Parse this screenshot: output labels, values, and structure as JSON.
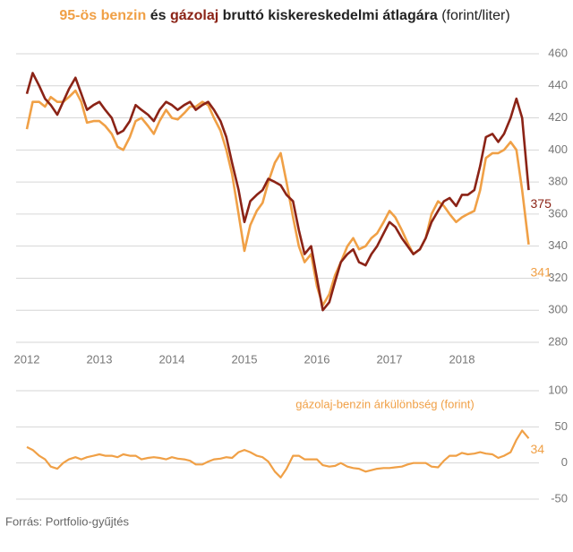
{
  "chart_data": [
    {
      "type": "line",
      "title": [
        "és",
        "bruttó kiskereskedelmi átlagára",
        "(forint/liter)"
      ],
      "xlim": [
        2012,
        2019
      ],
      "xticks": [
        2012,
        2013,
        2014,
        2015,
        2016,
        2017,
        2018
      ],
      "ylim": [
        280,
        460
      ],
      "yticks": [
        280,
        300,
        320,
        340,
        360,
        380,
        400,
        420,
        440,
        460
      ],
      "grid": true,
      "x": [
        2012.0,
        2012.08,
        2012.17,
        2012.25,
        2012.33,
        2012.42,
        2012.5,
        2012.58,
        2012.67,
        2012.75,
        2012.83,
        2012.92,
        2013.0,
        2013.08,
        2013.17,
        2013.25,
        2013.33,
        2013.42,
        2013.5,
        2013.58,
        2013.67,
        2013.75,
        2013.83,
        2013.92,
        2014.0,
        2014.08,
        2014.17,
        2014.25,
        2014.33,
        2014.42,
        2014.5,
        2014.58,
        2014.67,
        2014.75,
        2014.83,
        2014.92,
        2015.0,
        2015.08,
        2015.17,
        2015.25,
        2015.33,
        2015.42,
        2015.5,
        2015.58,
        2015.67,
        2015.75,
        2015.83,
        2015.92,
        2016.0,
        2016.08,
        2016.17,
        2016.25,
        2016.33,
        2016.42,
        2016.5,
        2016.58,
        2016.67,
        2016.75,
        2016.83,
        2016.92,
        2017.0,
        2017.08,
        2017.17,
        2017.25,
        2017.33,
        2017.42,
        2017.5,
        2017.58,
        2017.67,
        2017.75,
        2017.83,
        2017.92,
        2018.0,
        2018.08,
        2018.17,
        2018.25,
        2018.33,
        2018.42,
        2018.5,
        2018.58,
        2018.67,
        2018.75,
        2018.83,
        2018.92
      ],
      "series": [
        {
          "name": "95-ös benzin",
          "color": "#f0a046",
          "values": [
            413,
            430,
            430,
            427,
            433,
            430,
            430,
            433,
            437,
            430,
            417,
            418,
            418,
            415,
            410,
            402,
            400,
            408,
            418,
            420,
            415,
            410,
            418,
            425,
            420,
            419,
            423,
            427,
            427,
            430,
            428,
            420,
            412,
            400,
            385,
            360,
            337,
            353,
            362,
            367,
            380,
            392,
            398,
            380,
            358,
            340,
            330,
            335,
            315,
            303,
            310,
            322,
            330,
            340,
            345,
            338,
            340,
            345,
            348,
            355,
            362,
            358,
            350,
            342,
            335,
            338,
            345,
            360,
            368,
            365,
            360,
            355,
            358,
            360,
            362,
            375,
            395,
            398,
            398,
            400,
            405,
            400,
            375,
            341
          ]
        },
        {
          "name": "gázolaj",
          "color": "#8b2316",
          "values": [
            435,
            448,
            440,
            432,
            428,
            422,
            430,
            438,
            445,
            435,
            425,
            428,
            430,
            425,
            420,
            410,
            412,
            418,
            428,
            425,
            422,
            418,
            425,
            430,
            428,
            425,
            428,
            430,
            425,
            428,
            430,
            425,
            418,
            408,
            392,
            375,
            355,
            368,
            372,
            375,
            382,
            380,
            378,
            372,
            368,
            350,
            335,
            340,
            320,
            300,
            305,
            318,
            330,
            335,
            338,
            330,
            328,
            335,
            340,
            348,
            355,
            352,
            345,
            340,
            335,
            338,
            345,
            355,
            362,
            368,
            370,
            365,
            372,
            372,
            375,
            390,
            408,
            410,
            405,
            410,
            420,
            432,
            420,
            375
          ]
        }
      ]
    },
    {
      "type": "line",
      "xlim": [
        2012,
        2019
      ],
      "ylim": [
        -50,
        100
      ],
      "yticks": [
        -50,
        0,
        50,
        100
      ],
      "grid": true,
      "x": [
        2012.0,
        2012.08,
        2012.17,
        2012.25,
        2012.33,
        2012.42,
        2012.5,
        2012.58,
        2012.67,
        2012.75,
        2012.83,
        2012.92,
        2013.0,
        2013.08,
        2013.17,
        2013.25,
        2013.33,
        2013.42,
        2013.5,
        2013.58,
        2013.67,
        2013.75,
        2013.83,
        2013.92,
        2014.0,
        2014.08,
        2014.17,
        2014.25,
        2014.33,
        2014.42,
        2014.5,
        2014.58,
        2014.67,
        2014.75,
        2014.83,
        2014.92,
        2015.0,
        2015.08,
        2015.17,
        2015.25,
        2015.33,
        2015.42,
        2015.5,
        2015.58,
        2015.67,
        2015.75,
        2015.83,
        2015.92,
        2016.0,
        2016.08,
        2016.17,
        2016.25,
        2016.33,
        2016.42,
        2016.5,
        2016.58,
        2016.67,
        2016.75,
        2016.83,
        2016.92,
        2017.0,
        2017.08,
        2017.17,
        2017.25,
        2017.33,
        2017.42,
        2017.5,
        2017.58,
        2017.67,
        2017.75,
        2017.83,
        2017.92,
        2018.0,
        2018.08,
        2018.17,
        2018.25,
        2018.33,
        2018.42,
        2018.5,
        2018.58,
        2018.67,
        2018.75,
        2018.83,
        2018.92
      ],
      "series": [
        {
          "name": "gázolaj-benzin árkülönbség (forint)",
          "color": "#f0a046",
          "values": [
            22,
            18,
            10,
            5,
            -5,
            -8,
            0,
            5,
            8,
            5,
            8,
            10,
            12,
            10,
            10,
            8,
            12,
            10,
            10,
            5,
            7,
            8,
            7,
            5,
            8,
            6,
            5,
            3,
            -2,
            -2,
            2,
            5,
            6,
            8,
            7,
            15,
            18,
            15,
            10,
            8,
            2,
            -12,
            -20,
            -8,
            10,
            10,
            5,
            5,
            5,
            -3,
            -5,
            -4,
            0,
            -5,
            -7,
            -8,
            -12,
            -10,
            -8,
            -7,
            -7,
            -6,
            -5,
            -2,
            0,
            0,
            0,
            -5,
            -6,
            3,
            10,
            10,
            14,
            12,
            13,
            15,
            13,
            12,
            7,
            10,
            15,
            32,
            45,
            34
          ]
        }
      ]
    }
  ],
  "source": "Forrás: Portfolio-gyűjtés"
}
